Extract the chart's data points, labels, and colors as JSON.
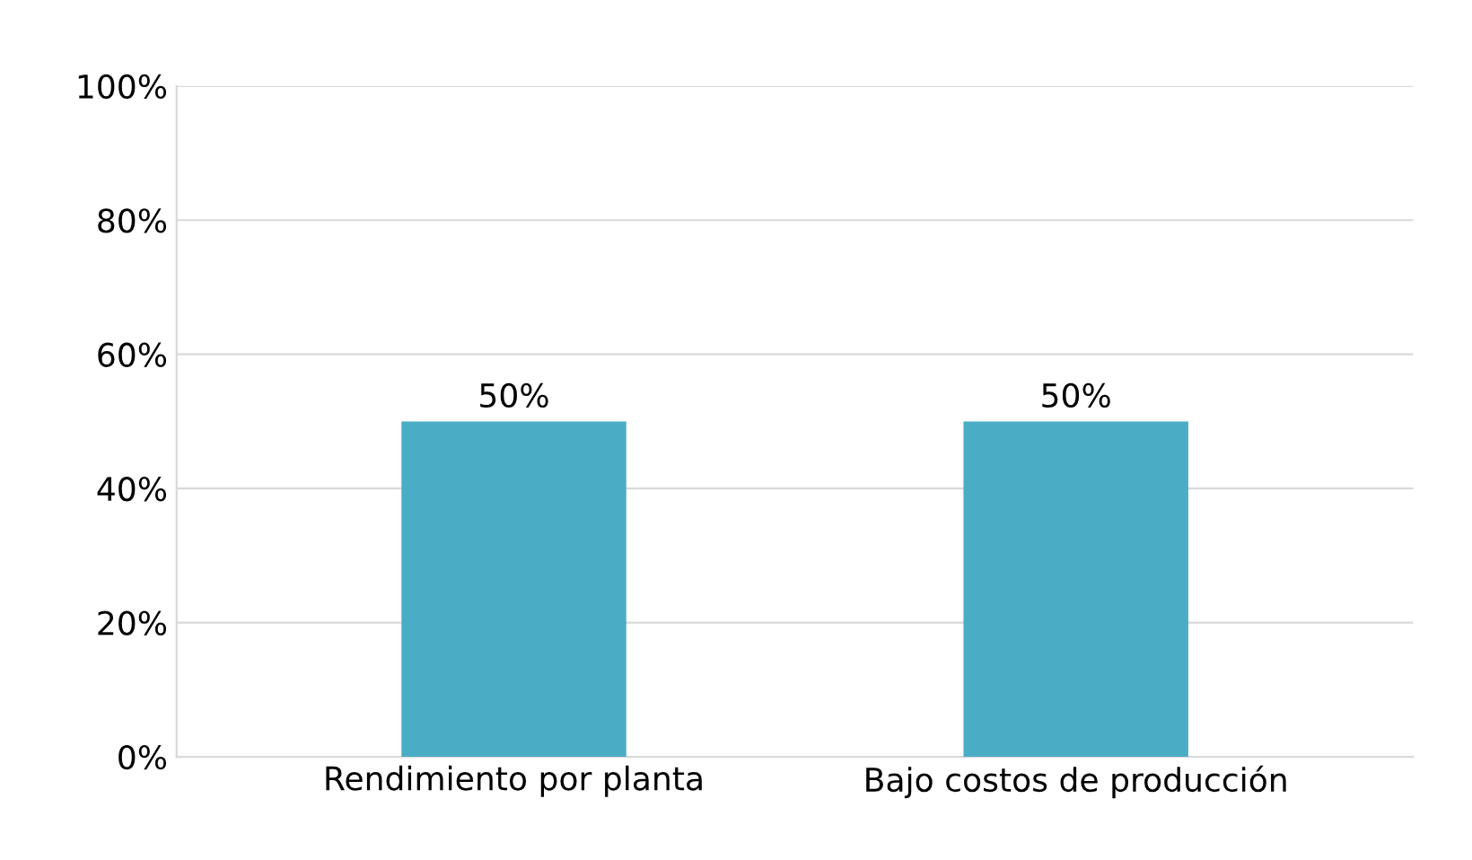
{
  "chart_data": {
    "type": "bar",
    "categories": [
      "Rendimiento por planta",
      "Bajo costos de producción"
    ],
    "values": [
      50,
      50
    ],
    "color": "#4bacc6",
    "value_labels": [
      "50%",
      "50%"
    ],
    "ylim": [
      0,
      100
    ],
    "yticks": [
      {
        "value": 0,
        "label": "0%"
      },
      {
        "value": 20,
        "label": "20%"
      },
      {
        "value": 40,
        "label": "40%"
      },
      {
        "value": 60,
        "label": "60%"
      },
      {
        "value": 80,
        "label": "80%"
      },
      {
        "value": 100,
        "label": "100%"
      }
    ],
    "grid": "y"
  }
}
